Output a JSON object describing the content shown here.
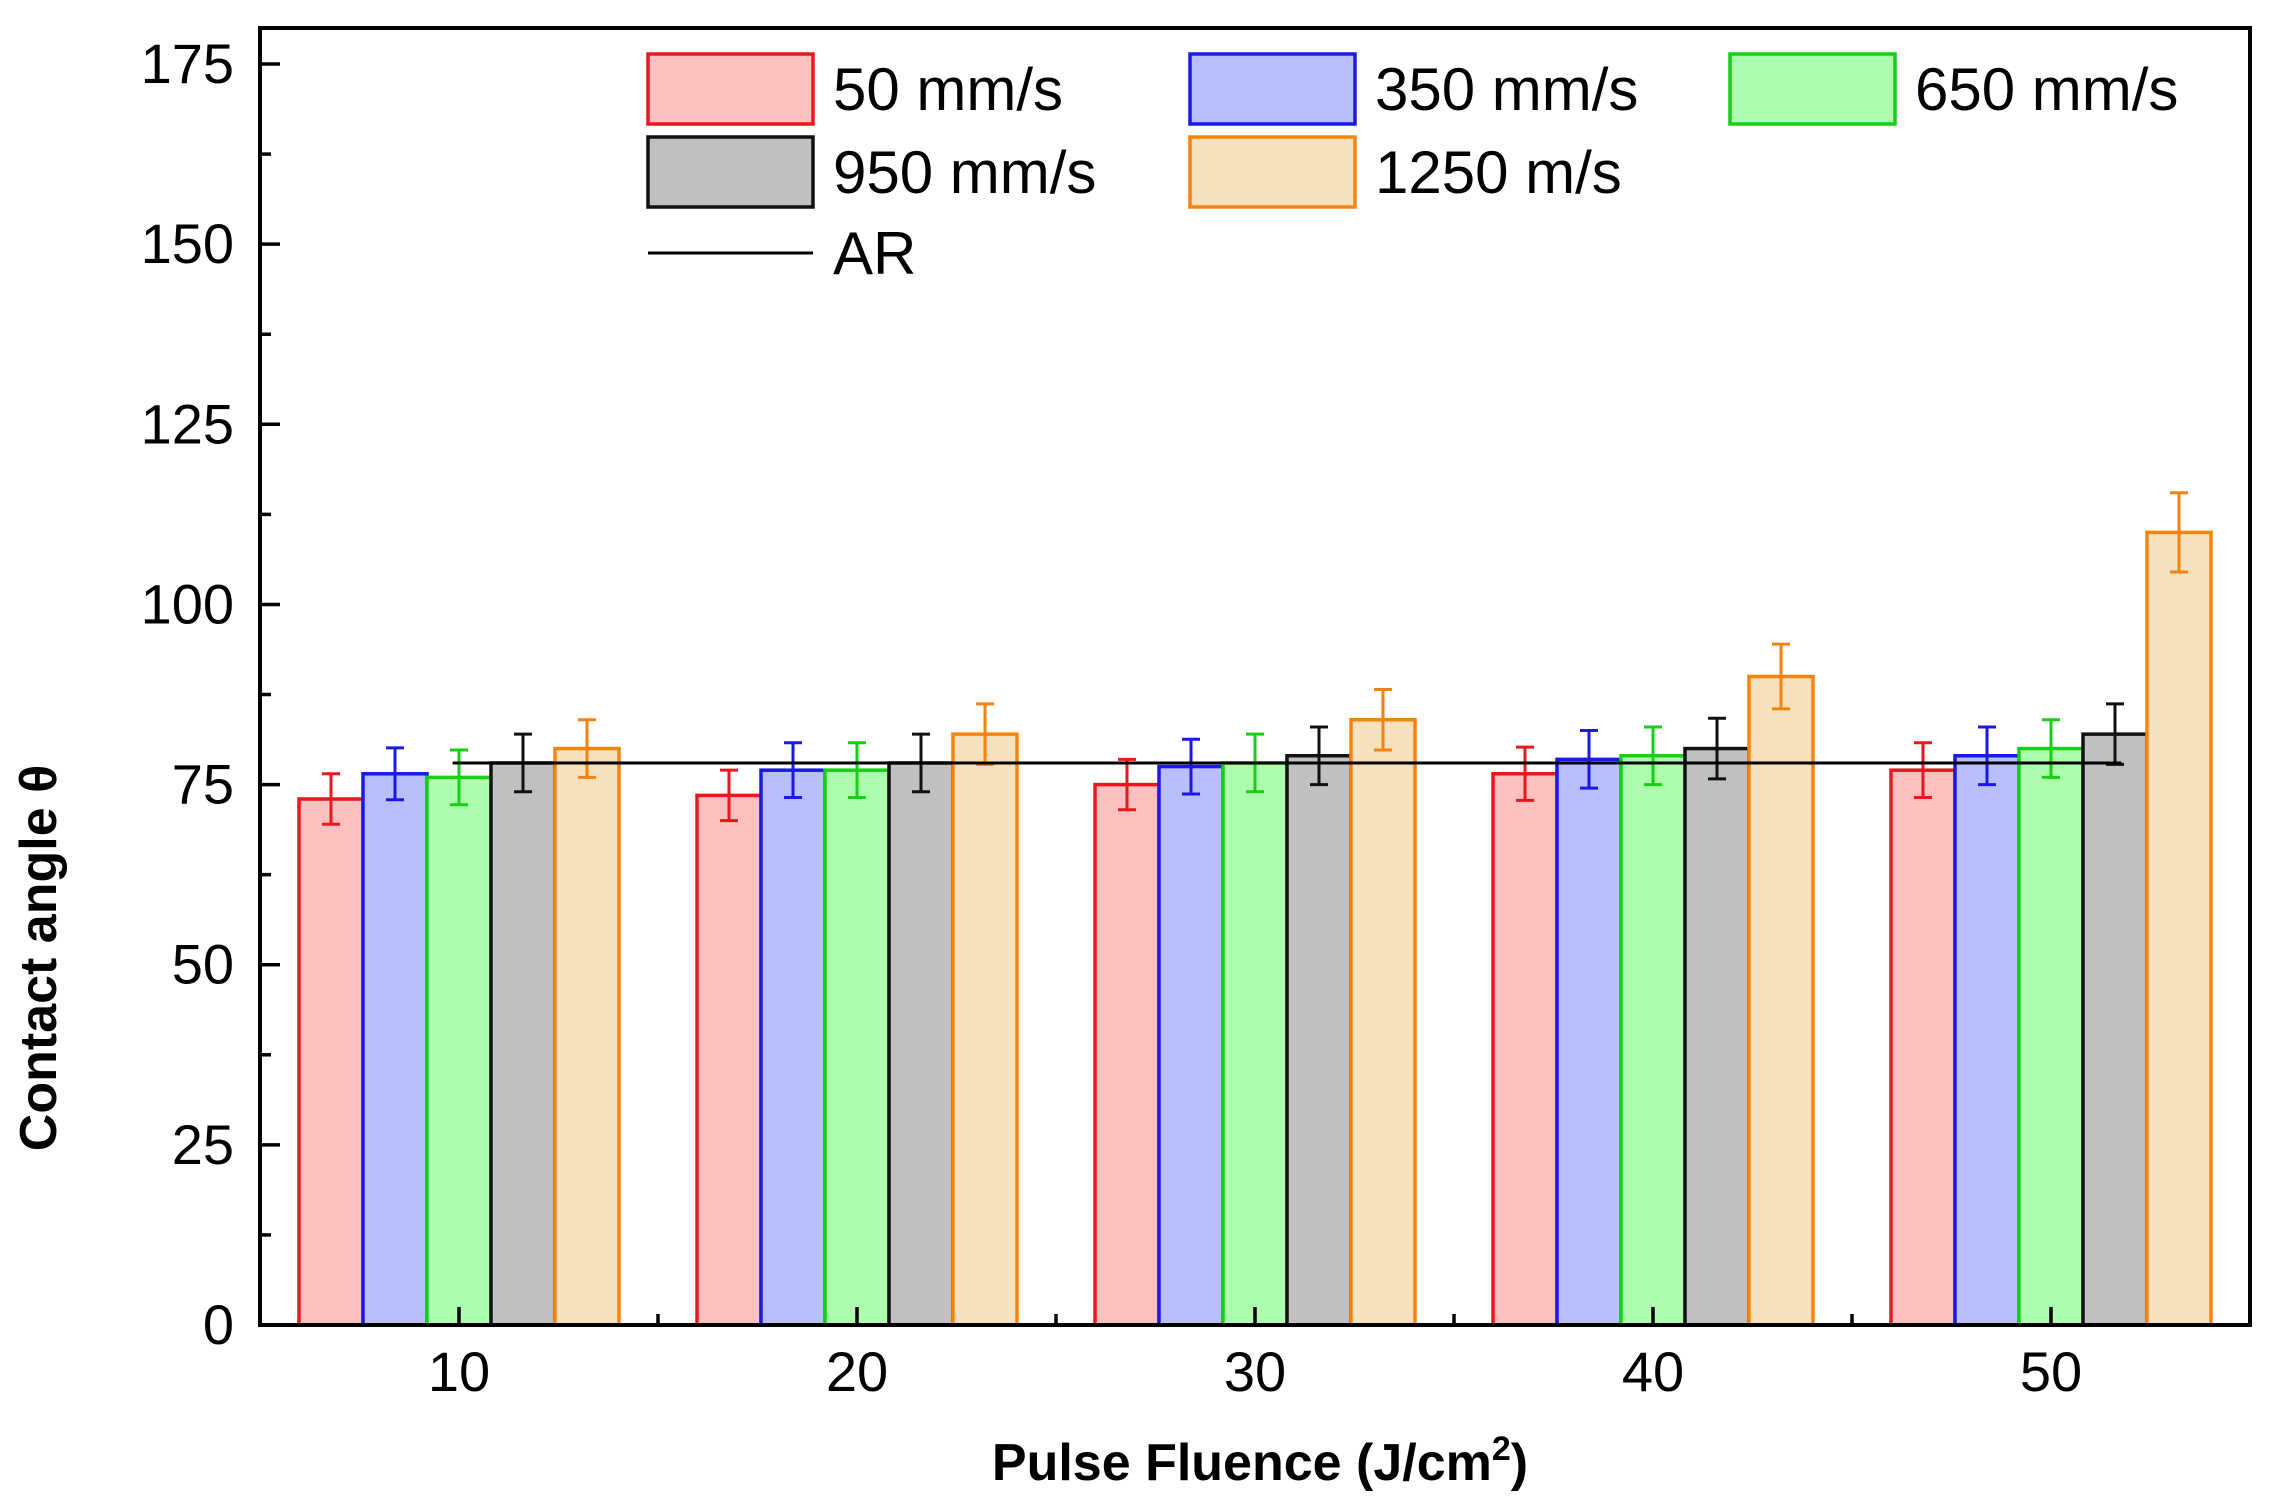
{
  "chart_data": {
    "type": "bar",
    "title": "",
    "xlabel": "Pulse Fluence (J/cm",
    "xlabel_sup": "2",
    "xlabel_close": ")",
    "ylabel": "Contact angle θ",
    "categories": [
      "10",
      "20",
      "30",
      "40",
      "50"
    ],
    "ylim": [
      0,
      180
    ],
    "yticks": [
      0,
      25,
      50,
      75,
      100,
      125,
      150,
      175
    ],
    "ytick_labels": [
      "0",
      "25",
      "50",
      "75",
      "100",
      "125",
      "150",
      "175"
    ],
    "legend_position": "top-right",
    "series": [
      {
        "name": "50 mm/s",
        "values": [
          73,
          73.5,
          75,
          76.5,
          77
        ],
        "errors": [
          3.5,
          3.5,
          3.5,
          3.7,
          3.8
        ],
        "stroke": "#e8181e",
        "fill": "#fdc0c0"
      },
      {
        "name": "350 mm/s",
        "values": [
          76.5,
          77,
          77.5,
          78.5,
          79
        ],
        "errors": [
          3.6,
          3.8,
          3.8,
          4,
          4
        ],
        "stroke": "#1a1ae6",
        "fill": "#b8bffa"
      },
      {
        "name": "650 mm/s",
        "values": [
          76,
          77,
          78,
          79,
          80
        ],
        "errors": [
          3.8,
          3.8,
          4,
          4,
          4
        ],
        "stroke": "#16d016",
        "fill": "#aefcae"
      },
      {
        "name": "950 mm/s",
        "values": [
          78,
          78,
          79,
          80,
          82
        ],
        "errors": [
          4,
          4,
          4,
          4.2,
          4.2
        ],
        "stroke": "#111111",
        "fill": "#c0c0c0"
      },
      {
        "name": "1250 m/s",
        "values": [
          80,
          82,
          84,
          90,
          110
        ],
        "errors": [
          4,
          4.2,
          4.2,
          4.5,
          5.5
        ],
        "stroke": "#f5840e",
        "fill": "#f7e2bf"
      }
    ],
    "reference_line": {
      "name": "AR",
      "value": 78,
      "color": "#000000"
    }
  }
}
